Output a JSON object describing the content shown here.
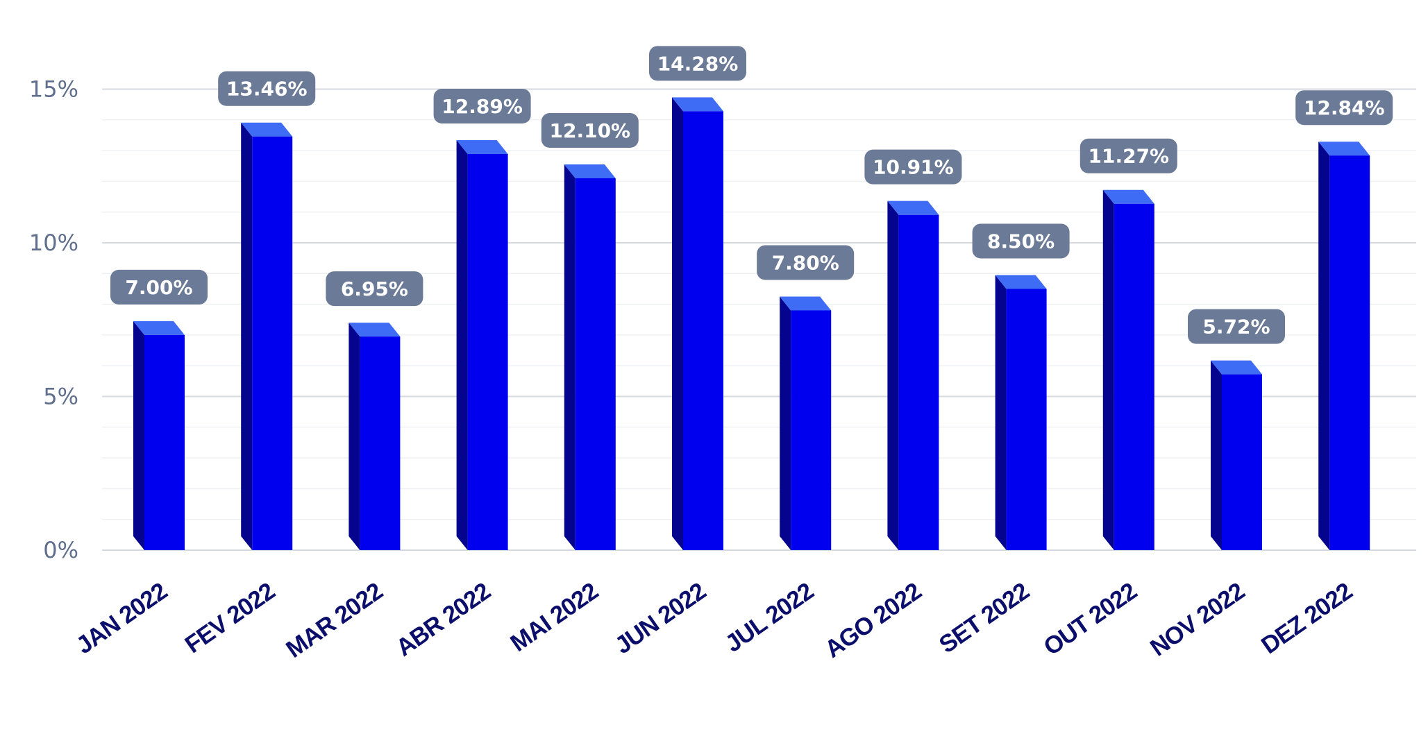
{
  "colors": {
    "bar_front": "#0000ee",
    "bar_side": "#04048f",
    "bar_top": "#3f6cf5",
    "label_bg": "#6b7a96",
    "label_text": "#ffffff",
    "axis_text": "#5f6e8c",
    "category_text": "#0b0f6b",
    "grid_major": "#d6d9df",
    "grid_minor": "#eff0f3"
  },
  "chart_data": {
    "type": "bar",
    "title": "",
    "xlabel": "",
    "ylabel": "",
    "categories": [
      "JAN 2022",
      "FEV 2022",
      "MAR 2022",
      "ABR 2022",
      "MAI 2022",
      "JUN 2022",
      "JUL 2022",
      "AGO 2022",
      "SET 2022",
      "OUT 2022",
      "NOV 2022",
      "DEZ 2022"
    ],
    "values": [
      7.0,
      13.46,
      6.95,
      12.89,
      12.1,
      14.28,
      7.8,
      10.91,
      8.5,
      11.27,
      5.72,
      12.84
    ],
    "data_labels": [
      "7.00%",
      "13.46%",
      "6.95%",
      "12.89%",
      "12.10%",
      "14.28%",
      "7.80%",
      "10.91%",
      "8.50%",
      "11.27%",
      "5.72%",
      "12.84%"
    ],
    "ylim": [
      0,
      15
    ],
    "yticks": [
      0,
      5,
      10,
      15
    ],
    "ytick_labels": [
      "0%",
      "5%",
      "10%",
      "15%"
    ],
    "grid": true,
    "legend": "none",
    "style": "3d"
  }
}
